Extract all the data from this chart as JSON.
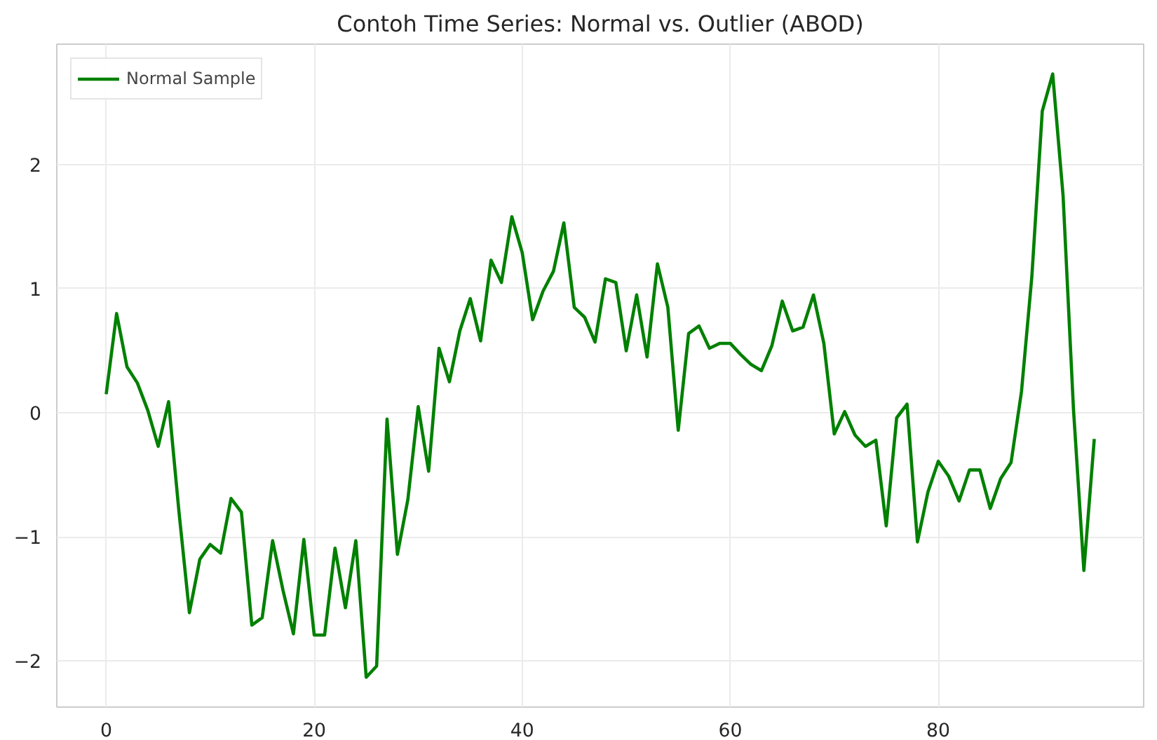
{
  "chart_data": {
    "type": "line",
    "title": "Contoh Time Series: Normal vs. Outlier (ABOD)",
    "x": [
      0,
      1,
      2,
      3,
      4,
      5,
      6,
      7,
      8,
      9,
      10,
      11,
      12,
      13,
      14,
      15,
      16,
      17,
      18,
      19,
      20,
      21,
      22,
      23,
      24,
      25,
      26,
      27,
      28,
      29,
      30,
      31,
      32,
      33,
      34,
      35,
      36,
      37,
      38,
      39,
      40,
      41,
      42,
      43,
      44,
      45,
      46,
      47,
      48,
      49,
      50,
      51,
      52,
      53,
      54,
      55,
      56,
      57,
      58,
      59,
      60,
      61,
      62,
      63,
      64,
      65,
      66,
      67,
      68,
      69,
      70,
      71,
      72,
      73,
      74,
      75,
      76,
      77,
      78,
      79,
      80,
      81,
      82,
      83,
      84,
      85,
      86,
      87,
      88,
      89,
      90,
      91,
      92,
      93,
      94,
      95
    ],
    "series": [
      {
        "name": "Normal Sample",
        "color": "#008000",
        "values": [
          0.15,
          0.8,
          0.37,
          0.24,
          0.02,
          -0.27,
          0.09,
          -0.8,
          -1.61,
          -1.18,
          -1.06,
          -1.13,
          -0.69,
          -0.8,
          -1.71,
          -1.65,
          -1.03,
          -1.43,
          -1.78,
          -1.02,
          -1.79,
          -1.79,
          -1.09,
          -1.57,
          -1.03,
          -2.13,
          -2.04,
          -0.05,
          -1.14,
          -0.7,
          0.05,
          -0.47,
          0.52,
          0.25,
          0.66,
          0.92,
          0.58,
          1.23,
          1.05,
          1.58,
          1.29,
          0.75,
          0.98,
          1.14,
          1.53,
          0.85,
          0.77,
          0.57,
          1.08,
          1.05,
          0.5,
          0.95,
          0.45,
          1.2,
          0.85,
          -0.14,
          0.64,
          0.7,
          0.52,
          0.56,
          0.56,
          0.47,
          0.39,
          0.34,
          0.54,
          0.9,
          0.66,
          0.69,
          0.95,
          0.56,
          -0.17,
          0.01,
          -0.18,
          -0.27,
          -0.22,
          -0.91,
          -0.04,
          0.07,
          -1.04,
          -0.64,
          -0.39,
          -0.51,
          -0.71,
          -0.46,
          -0.46,
          -0.77,
          -0.53,
          -0.4,
          0.17,
          1.1,
          2.43,
          2.73,
          1.75,
          0.03,
          -1.27,
          -0.21
        ]
      }
    ],
    "xlim": [
      -4.75,
      99.75
    ],
    "ylim": [
      -2.37,
      2.97
    ],
    "xticks": [
      0,
      20,
      40,
      60,
      80
    ],
    "yticks": [
      {
        "value": -2,
        "label": "−2"
      },
      {
        "value": -1,
        "label": "−1"
      },
      0,
      1,
      2
    ],
    "grid": true,
    "legend": "top left",
    "line_style": "solid",
    "marker": "none"
  }
}
